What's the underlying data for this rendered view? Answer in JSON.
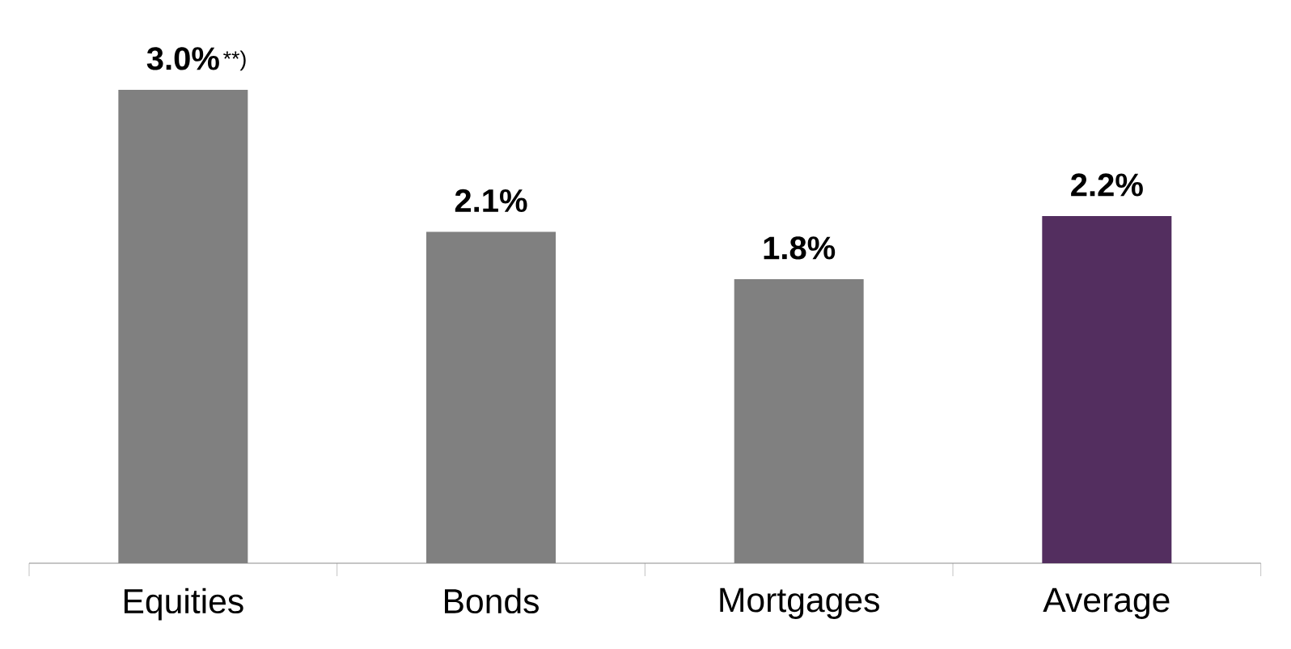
{
  "chart_data": {
    "type": "bar",
    "categories": [
      "Equities",
      "Bonds",
      "Mortgages",
      "Average"
    ],
    "values": [
      3.0,
      2.1,
      1.8,
      2.2
    ],
    "colors": [
      "#808080",
      "#808080",
      "#808080",
      "#532e5f"
    ],
    "value_labels": [
      "3.0%",
      "2.1%",
      "1.8%",
      "2.2%"
    ],
    "annotations": [
      {
        "text": "**)",
        "x": "Equities",
        "y": 3.0
      }
    ]
  }
}
